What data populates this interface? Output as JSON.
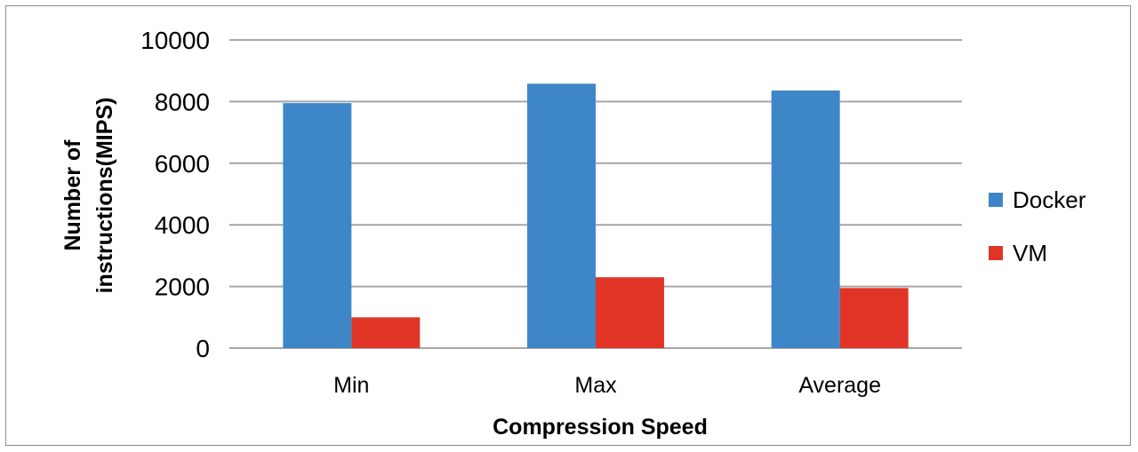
{
  "chart_data": {
    "type": "bar",
    "title": "",
    "xlabel": "Compression Speed",
    "ylabel_lines": [
      "Number of",
      "instructions(MIPS)"
    ],
    "categories": [
      "Min",
      "Max",
      "Average"
    ],
    "series": [
      {
        "name": "Docker",
        "color": "#3d87c8",
        "values": [
          7950,
          8580,
          8360
        ]
      },
      {
        "name": "VM",
        "color": "#e03526",
        "values": [
          1000,
          2300,
          1950
        ]
      }
    ],
    "ylim": [
      0,
      10000
    ],
    "yticks": [
      0,
      2000,
      4000,
      6000,
      8000,
      10000
    ],
    "grid": true,
    "legend_position": "right"
  }
}
